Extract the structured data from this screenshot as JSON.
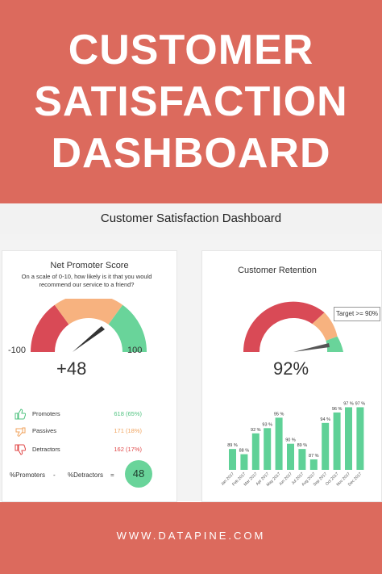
{
  "banner": {
    "lines": [
      "CUSTOMER",
      "SATISFACTION",
      "DASHBOARD"
    ]
  },
  "subtitle": "Customer Satisfaction Dashboard",
  "nps": {
    "title": "Net Promoter Score",
    "question": "On a scale of 0-10, how likely is it that you would recommend our service to a friend?",
    "min_label": "-100",
    "max_label": "100",
    "value_label": "+48",
    "score": 48,
    "rows": [
      {
        "name": "Promoters",
        "value": "618 (65%)",
        "color": "#4fc27f",
        "icon": "thumbs-up-icon"
      },
      {
        "name": "Passives",
        "value": "171 (18%)",
        "color": "#f0a35e",
        "icon": "thumbs-sideways-icon"
      },
      {
        "name": "Detractors",
        "value": "162 (17%)",
        "color": "#e04848",
        "icon": "thumbs-down-icon"
      }
    ],
    "formula": {
      "left": "%Promoters",
      "minus": "-",
      "right": "%Detractors",
      "equals": "=",
      "result": "48"
    }
  },
  "retention": {
    "title": "Customer Retention",
    "value_label": "92%",
    "value": 92,
    "target_label": "Target >=  90%",
    "target": 90
  },
  "chart_data": {
    "type": "bar",
    "categories": [
      "Jan 2017",
      "Feb 2017",
      "Mar 2017",
      "Apr 2017",
      "May 2017",
      "Jun 2017",
      "Jul 2017",
      "Aug 2017",
      "Sep 2017",
      "Oct 2017",
      "Nov 2017",
      "Dec 2017"
    ],
    "values": [
      89,
      88,
      92,
      93,
      95,
      90,
      89,
      87,
      94,
      96,
      97,
      97
    ],
    "value_labels": [
      "89 %",
      "88 %",
      "92 %",
      "93 %",
      "95 %",
      "90 %",
      "89 %",
      "87 %",
      "94 %",
      "96 %",
      "97 %",
      "97 %"
    ],
    "ylim": [
      85,
      98
    ],
    "color": "#5fd197"
  },
  "colors": {
    "brand": "#dc6a5d",
    "green": "#5fd197",
    "orange": "#f7b27f",
    "red": "#d94a56"
  },
  "footer": "WWW.DATAPINE.COM"
}
